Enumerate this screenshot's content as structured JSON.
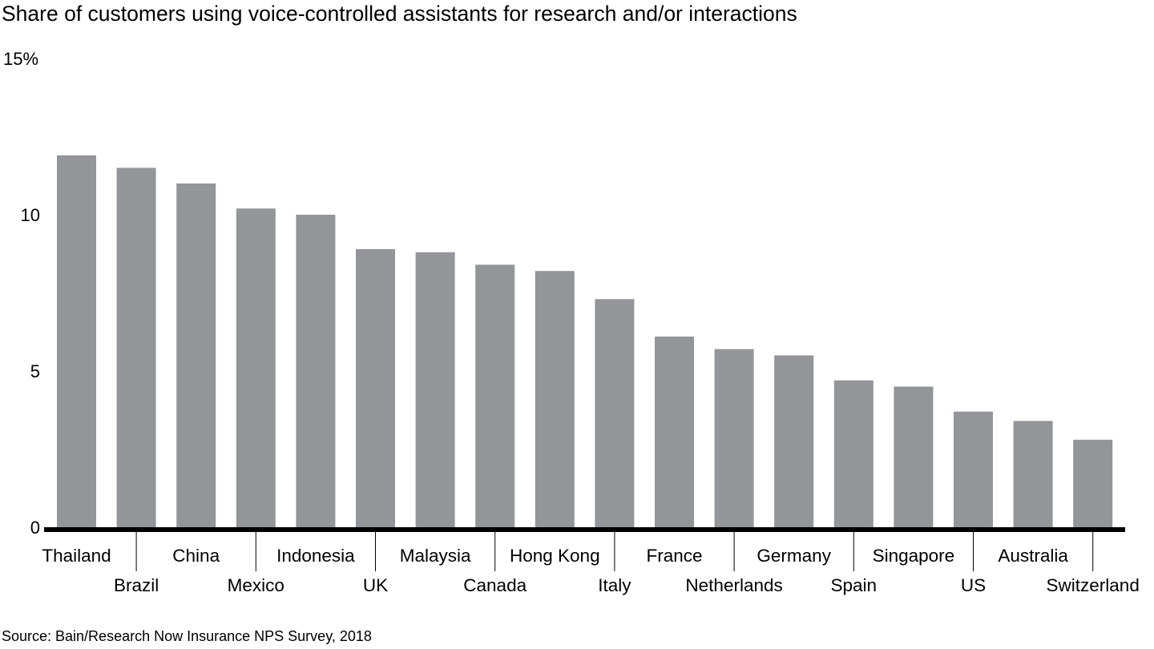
{
  "chart_data": {
    "type": "bar",
    "title": "Share of customers using voice-controlled assistants for research and/or interactions",
    "xlabel": "",
    "ylabel": "",
    "ylim": [
      0,
      15
    ],
    "yticks": [
      {
        "value": 0,
        "label": "0"
      },
      {
        "value": 5,
        "label": "5"
      },
      {
        "value": 10,
        "label": "10"
      },
      {
        "value": 15,
        "label": "15%"
      }
    ],
    "grid": false,
    "legend": "none",
    "bar_color": "#939598",
    "axis_color": "#000000",
    "categories": [
      "Thailand",
      "Brazil",
      "China",
      "Mexico",
      "Indonesia",
      "UK",
      "Malaysia",
      "Canada",
      "Hong Kong",
      "Italy",
      "France",
      "Netherlands",
      "Germany",
      "Spain",
      "Singapore",
      "US",
      "Australia",
      "Switzerland"
    ],
    "values": [
      11.9,
      11.5,
      11.0,
      10.2,
      10.0,
      8.9,
      8.8,
      8.4,
      8.2,
      7.3,
      6.1,
      5.7,
      5.5,
      4.7,
      4.5,
      3.7,
      3.4,
      2.8
    ],
    "source": "Source: Bain/Research Now Insurance NPS Survey, 2018"
  }
}
